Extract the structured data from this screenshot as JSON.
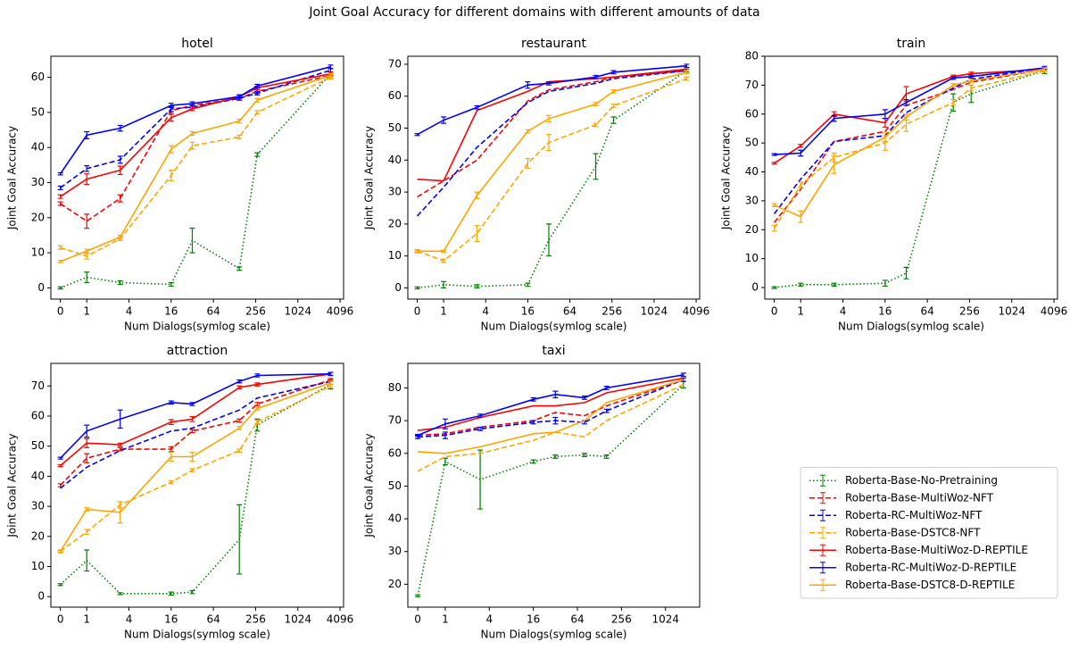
{
  "title": "Joint Goal Accuracy for different domains with different amounts of data",
  "chart_data": [
    {
      "type": "line",
      "title": "hotel",
      "xlabel": "Num Dialogs(symlog scale)",
      "ylabel": "Joint Goal Accuracy",
      "xscale": "symlog",
      "x": [
        0,
        1,
        3,
        16,
        32,
        150,
        270,
        3000
      ],
      "xlim": [
        -0.36,
        4600
      ],
      "xticks": [
        0,
        1,
        4,
        16,
        64,
        256,
        1024,
        4096
      ],
      "ylim": [
        -3.2,
        66
      ],
      "yticks": [
        0,
        10,
        20,
        30,
        40,
        50,
        60
      ],
      "series": [
        {
          "name": "Roberta-Base-No-Pretraining",
          "color": "green",
          "linestyle": "dotted",
          "values": [
            0,
            3,
            1.5,
            1,
            13.5,
            5.5,
            38,
            61
          ],
          "errors": [
            0.3,
            1.5,
            0.5,
            0.5,
            3.5,
            0.5,
            0.5,
            0.5
          ]
        },
        {
          "name": "Roberta-Base-MultiWoz-NFT",
          "color": "red",
          "linestyle": "dashed",
          "values": [
            24,
            19,
            25.5,
            50.5,
            52,
            54,
            56,
            60.5
          ],
          "errors": [
            0.5,
            2,
            1,
            1,
            0.5,
            0.5,
            0.5,
            0.5
          ]
        },
        {
          "name": "Roberta-RC-MultiWoz-NFT",
          "color": "blue",
          "linestyle": "dashed",
          "values": [
            28.5,
            34,
            36.5,
            51,
            51.5,
            54,
            55.5,
            62
          ],
          "errors": [
            0.5,
            0.8,
            1,
            0.8,
            0.5,
            0.5,
            0.5,
            0.5
          ]
        },
        {
          "name": "Roberta-Base-DSTC8-NFT",
          "color": "orange",
          "linestyle": "dashed",
          "values": [
            11.5,
            9,
            14,
            32,
            40.5,
            43,
            50,
            60
          ],
          "errors": [
            0.5,
            0.8,
            0.5,
            1.5,
            1,
            0.5,
            0.5,
            0.5
          ]
        },
        {
          "name": "Roberta-Base-MultiWoz-D-REPTILE",
          "color": "red",
          "linestyle": "solid",
          "values": [
            26,
            31,
            33.5,
            48.5,
            51,
            54.5,
            57,
            61
          ],
          "errors": [
            0.5,
            1.5,
            1.2,
            1,
            0.5,
            0.5,
            0.5,
            0.5
          ]
        },
        {
          "name": "Roberta-RC-MultiWoz-D-REPTILE",
          "color": "blue",
          "linestyle": "solid",
          "values": [
            32.5,
            43.5,
            45.5,
            52,
            52.5,
            54.5,
            57.5,
            63
          ],
          "errors": [
            0.3,
            1,
            0.8,
            0.6,
            0.5,
            0.5,
            0.5,
            0.5
          ]
        },
        {
          "name": "Roberta-Base-DSTC8-D-REPTILE",
          "color": "orange",
          "linestyle": "solid",
          "values": [
            7.5,
            10.5,
            14.5,
            39.5,
            44,
            47.5,
            53.5,
            60.5
          ],
          "errors": [
            0.3,
            0.5,
            0.5,
            1,
            0.5,
            0.5,
            0.5,
            0.5
          ]
        }
      ]
    },
    {
      "type": "line",
      "title": "restaurant",
      "xlabel": "Num Dialogs(symlog scale)",
      "ylabel": "Joint Goal Accuracy",
      "xscale": "symlog",
      "x": [
        0,
        1,
        3,
        16,
        32,
        150,
        270,
        3000
      ],
      "xlim": [
        -0.36,
        4600
      ],
      "xticks": [
        0,
        1,
        4,
        16,
        64,
        256,
        1024,
        4096
      ],
      "ylim": [
        -3.5,
        72.5
      ],
      "yticks": [
        0,
        10,
        20,
        30,
        40,
        50,
        60,
        70
      ],
      "series": [
        {
          "name": "Roberta-Base-No-Pretraining",
          "color": "green",
          "linestyle": "dotted",
          "values": [
            0,
            1,
            0.5,
            1,
            15,
            38,
            52.5,
            68
          ],
          "errors": [
            0.3,
            1,
            0.5,
            0.5,
            5,
            4,
            1,
            0.5
          ]
        },
        {
          "name": "Roberta-Base-MultiWoz-NFT",
          "color": "red",
          "linestyle": "dashed",
          "values": [
            28.5,
            33.5,
            40,
            58.5,
            62,
            64.5,
            66,
            68
          ]
        },
        {
          "name": "Roberta-RC-MultiWoz-NFT",
          "color": "blue",
          "linestyle": "dashed",
          "values": [
            22.5,
            31.5,
            44,
            58,
            61.5,
            64,
            65.5,
            68
          ]
        },
        {
          "name": "Roberta-Base-DSTC8-NFT",
          "color": "orange",
          "linestyle": "dashed",
          "values": [
            11.5,
            8.5,
            17,
            39,
            45.5,
            51,
            57,
            65.5
          ],
          "errors": [
            0.5,
            0.5,
            2.5,
            1.5,
            2.5,
            0.5,
            0.5,
            0.5
          ]
        },
        {
          "name": "Roberta-Base-MultiWoz-D-REPTILE",
          "color": "red",
          "linestyle": "solid",
          "values": [
            34,
            33.5,
            55.5,
            61.5,
            64.5,
            65.5,
            66,
            68.5
          ]
        },
        {
          "name": "Roberta-RC-MultiWoz-D-REPTILE",
          "color": "blue",
          "linestyle": "solid",
          "values": [
            48,
            52.5,
            56.5,
            63.5,
            64,
            66,
            67.5,
            69.5
          ],
          "errors": [
            0.3,
            1,
            0.5,
            1,
            0.5,
            0.5,
            0.5,
            0.5
          ]
        },
        {
          "name": "Roberta-Base-DSTC8-D-REPTILE",
          "color": "orange",
          "linestyle": "solid",
          "values": [
            11.5,
            11.5,
            29,
            49,
            53,
            57.5,
            61.5,
            67.5
          ],
          "errors": [
            0.3,
            0.3,
            1,
            0.5,
            1,
            0.5,
            0.5,
            0.5
          ]
        }
      ]
    },
    {
      "type": "line",
      "title": "train",
      "xlabel": "Num Dialogs(symlog scale)",
      "ylabel": "Joint Goal Accuracy",
      "xscale": "symlog",
      "x": [
        0,
        1,
        3,
        16,
        32,
        150,
        270,
        3000
      ],
      "xlim": [
        -0.36,
        4600
      ],
      "xticks": [
        0,
        1,
        4,
        16,
        64,
        256,
        1024,
        4096
      ],
      "ylim": [
        -4,
        80
      ],
      "yticks": [
        0,
        10,
        20,
        30,
        40,
        50,
        60,
        70,
        80
      ],
      "series": [
        {
          "name": "Roberta-Base-No-Pretraining",
          "color": "green",
          "linestyle": "dotted",
          "values": [
            0,
            1,
            1,
            1.5,
            5,
            64,
            67,
            75
          ],
          "errors": [
            0.3,
            0.5,
            0.5,
            1,
            2,
            3,
            3,
            1
          ]
        },
        {
          "name": "Roberta-Base-MultiWoz-NFT",
          "color": "red",
          "linestyle": "dashed",
          "values": [
            22.5,
            34,
            50.5,
            54,
            63,
            68.5,
            71,
            75.5
          ]
        },
        {
          "name": "Roberta-RC-MultiWoz-NFT",
          "color": "blue",
          "linestyle": "dashed",
          "values": [
            25.5,
            37.5,
            50.5,
            52.5,
            60.5,
            69,
            72,
            76
          ]
        },
        {
          "name": "Roberta-Base-DSTC8-NFT",
          "color": "orange",
          "linestyle": "dashed",
          "values": [
            20.5,
            35.5,
            45,
            50,
            56.5,
            64,
            69,
            75
          ],
          "errors": [
            1,
            1,
            1.5,
            2.5,
            2.5,
            1,
            1,
            0.5
          ]
        },
        {
          "name": "Roberta-Base-MultiWoz-D-REPTILE",
          "color": "red",
          "linestyle": "solid",
          "values": [
            43,
            49,
            60,
            57,
            67,
            73,
            74,
            75.5
          ],
          "errors": [
            0.3,
            0.5,
            0.8,
            1.5,
            2.5,
            0.5,
            0.5,
            0.5
          ]
        },
        {
          "name": "Roberta-RC-MultiWoz-D-REPTILE",
          "color": "blue",
          "linestyle": "solid",
          "values": [
            46,
            46.5,
            58.5,
            60,
            64,
            72.5,
            73,
            76
          ],
          "errors": [
            0.3,
            1,
            1,
            1.5,
            1,
            0.5,
            0.5,
            0.5
          ]
        },
        {
          "name": "Roberta-Base-DSTC8-D-REPTILE",
          "color": "orange",
          "linestyle": "solid",
          "values": [
            28.5,
            24.5,
            42.5,
            52,
            59,
            70,
            71.5,
            75.5
          ],
          "errors": [
            0.5,
            2,
            3,
            1.5,
            1,
            0.5,
            0.5,
            0.5
          ]
        }
      ]
    },
    {
      "type": "line",
      "title": "attraction",
      "xlabel": "Num Dialogs(symlog scale)",
      "ylabel": "Joint Goal Accuracy",
      "xscale": "symlog",
      "x": [
        0,
        1,
        3,
        16,
        32,
        150,
        270,
        3000
      ],
      "xlim": [
        -0.36,
        4600
      ],
      "xticks": [
        0,
        1,
        4,
        16,
        64,
        256,
        1024,
        4096
      ],
      "ylim": [
        -3.5,
        77.5
      ],
      "yticks": [
        0,
        10,
        20,
        30,
        40,
        50,
        60,
        70
      ],
      "series": [
        {
          "name": "Roberta-Base-No-Pretraining",
          "color": "green",
          "linestyle": "dotted",
          "values": [
            4,
            12,
            1,
            1,
            1.5,
            19,
            57,
            70.5
          ],
          "errors": [
            0.3,
            3.5,
            0.3,
            0.5,
            0.5,
            11.5,
            2,
            1.5
          ]
        },
        {
          "name": "Roberta-Base-MultiWoz-NFT",
          "color": "red",
          "linestyle": "dashed",
          "values": [
            37,
            46,
            49,
            49,
            55,
            58.5,
            64,
            72
          ],
          "errors": [
            0.5,
            1.5,
            0.5,
            0.8,
            0.5,
            0.5,
            0.5,
            0.5
          ]
        },
        {
          "name": "Roberta-RC-MultiWoz-NFT",
          "color": "blue",
          "linestyle": "dashed",
          "values": [
            36,
            43,
            48.5,
            55,
            56,
            62,
            66,
            71.5
          ]
        },
        {
          "name": "Roberta-Base-DSTC8-NFT",
          "color": "orange",
          "linestyle": "dashed",
          "values": [
            15,
            21.5,
            30.5,
            38,
            42,
            48.5,
            58,
            70
          ],
          "errors": [
            0.5,
            0.8,
            1,
            0.5,
            0.5,
            0.5,
            0.5,
            0.5
          ]
        },
        {
          "name": "Roberta-Base-MultiWoz-D-REPTILE",
          "color": "red",
          "linestyle": "solid",
          "values": [
            43.5,
            51,
            50.5,
            58,
            59,
            69.5,
            70.5,
            74
          ],
          "errors": [
            0.3,
            1.5,
            0.5,
            0.8,
            0.8,
            0.5,
            0.5,
            0.5
          ]
        },
        {
          "name": "Roberta-RC-MultiWoz-D-REPTILE",
          "color": "blue",
          "linestyle": "solid",
          "values": [
            46,
            55,
            59,
            64.5,
            64,
            71.5,
            73.5,
            74
          ],
          "errors": [
            0.3,
            2,
            3,
            0.5,
            0.5,
            0.5,
            0.5,
            0.5
          ]
        },
        {
          "name": "Roberta-Base-DSTC8-D-REPTILE",
          "color": "orange",
          "linestyle": "solid",
          "values": [
            15,
            29,
            28,
            46.5,
            46.5,
            56,
            62.5,
            71
          ],
          "errors": [
            0.3,
            0.5,
            3.5,
            1.5,
            1.5,
            0.5,
            0.5,
            0.5
          ]
        }
      ]
    },
    {
      "type": "line",
      "title": "taxi",
      "xlabel": "Num Dialogs(symlog scale)",
      "ylabel": "Joint Goal Accuracy",
      "xscale": "symlog",
      "x": [
        0,
        1,
        3,
        16,
        32,
        80,
        160,
        1800
      ],
      "xlim": [
        -0.36,
        3000
      ],
      "xticks": [
        0,
        1,
        4,
        16,
        64,
        256,
        1024
      ],
      "ylim": [
        13,
        87.5
      ],
      "yticks": [
        20,
        30,
        40,
        50,
        60,
        70,
        80
      ],
      "legend": "lower right",
      "series": [
        {
          "name": "Roberta-Base-No-Pretraining",
          "color": "green",
          "linestyle": "dotted",
          "values": [
            16.5,
            57.5,
            52,
            57.5,
            59,
            59.5,
            59,
            81
          ],
          "errors": [
            0.3,
            1,
            9,
            0.5,
            0.5,
            0.5,
            0.5,
            1
          ]
        },
        {
          "name": "Roberta-Base-MultiWoz-NFT",
          "color": "red",
          "linestyle": "dashed",
          "values": [
            65.5,
            66,
            68,
            70,
            72.5,
            71.5,
            74.5,
            82.5
          ]
        },
        {
          "name": "Roberta-RC-MultiWoz-NFT",
          "color": "blue",
          "linestyle": "dashed",
          "values": [
            65,
            65.5,
            67.5,
            69.5,
            70,
            69.5,
            73,
            82.5
          ],
          "errors": [
            0.5,
            1,
            0.5,
            0.5,
            1,
            0.5,
            0.5,
            0.5
          ]
        },
        {
          "name": "Roberta-Base-DSTC8-NFT",
          "color": "orange",
          "linestyle": "dashed",
          "values": [
            54.5,
            59,
            60,
            64,
            66.5,
            65,
            70,
            81
          ]
        },
        {
          "name": "Roberta-Base-MultiWoz-D-REPTILE",
          "color": "red",
          "linestyle": "solid",
          "values": [
            67,
            68,
            71,
            74.5,
            74.5,
            75.5,
            78.5,
            83
          ]
        },
        {
          "name": "Roberta-RC-MultiWoz-D-REPTILE",
          "color": "blue",
          "linestyle": "solid",
          "values": [
            65.5,
            69,
            71.5,
            76.5,
            78,
            77,
            80,
            84
          ],
          "errors": [
            0.3,
            1.5,
            0.5,
            0.5,
            1,
            0.5,
            0.5,
            0.5
          ]
        },
        {
          "name": "Roberta-Base-DSTC8-D-REPTILE",
          "color": "orange",
          "linestyle": "solid",
          "values": [
            60.5,
            60,
            62,
            66,
            66.5,
            70,
            75.5,
            82.5
          ]
        }
      ]
    }
  ]
}
